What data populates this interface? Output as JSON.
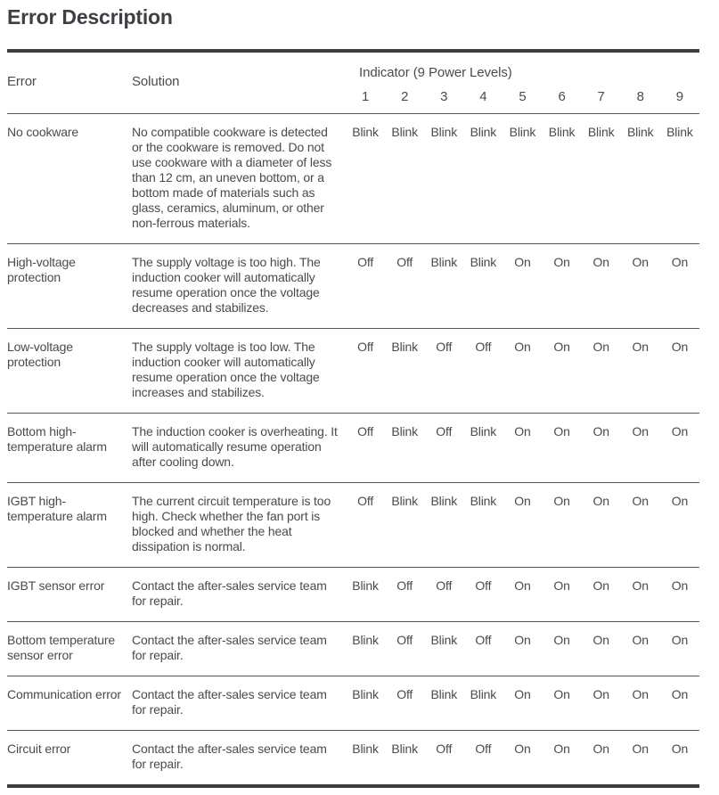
{
  "page": {
    "title": "Error Description"
  },
  "colors": {
    "text": "#4a4a51",
    "heading": "#3e3e44",
    "border_thick": "#3d3d42",
    "border_thin": "#55555a",
    "background": "#ffffff"
  },
  "table": {
    "headers": {
      "error": "Error",
      "solution": "Solution",
      "indicator_group": "Indicator (9 Power Levels)"
    },
    "indicator_columns": [
      "1",
      "2",
      "3",
      "4",
      "5",
      "6",
      "7",
      "8",
      "9"
    ],
    "rows": [
      {
        "error": "No cookware",
        "solution": "No compatible cookware is detected or the cookware is removed. Do not use cookware with a diameter of less than 12 cm, an uneven bottom, or a bottom made of materials such as glass, ceramics, aluminum, or other non-ferrous materials.",
        "indicators": [
          "Blink",
          "Blink",
          "Blink",
          "Blink",
          "Blink",
          "Blink",
          "Blink",
          "Blink",
          "Blink"
        ]
      },
      {
        "error": "High-voltage protection",
        "solution": "The supply voltage is too high. The induction cooker will automatically resume operation once the voltage decreases and stabilizes.",
        "indicators": [
          "Off",
          "Off",
          "Blink",
          "Blink",
          "On",
          "On",
          "On",
          "On",
          "On"
        ]
      },
      {
        "error": "Low-voltage protection",
        "solution": "The supply voltage is too low. The induction cooker will automatically resume operation once the voltage increases and stabilizes.",
        "indicators": [
          "Off",
          "Blink",
          "Off",
          "Off",
          "On",
          "On",
          "On",
          "On",
          "On"
        ]
      },
      {
        "error": "Bottom high-temperature alarm",
        "solution": "The induction cooker is overheating. It will automatically resume operation after cooling down.",
        "indicators": [
          "Off",
          "Blink",
          "Off",
          "Blink",
          "On",
          "On",
          "On",
          "On",
          "On"
        ]
      },
      {
        "error": "IGBT high-temperature alarm",
        "solution": "The current circuit temperature is too high. Check whether the fan port is blocked and whether the heat dissipation is normal.",
        "indicators": [
          "Off",
          "Blink",
          "Blink",
          "Blink",
          "On",
          "On",
          "On",
          "On",
          "On"
        ]
      },
      {
        "error": "IGBT sensor error",
        "solution": "Contact the after-sales service team for repair.",
        "indicators": [
          "Blink",
          "Off",
          "Off",
          "Off",
          "On",
          "On",
          "On",
          "On",
          "On"
        ]
      },
      {
        "error": "Bottom temperature sensor error",
        "solution": "Contact the after-sales service team for repair.",
        "indicators": [
          "Blink",
          "Off",
          "Blink",
          "Off",
          "On",
          "On",
          "On",
          "On",
          "On"
        ]
      },
      {
        "error": "Communication error",
        "solution": "Contact the after-sales service team for repair.",
        "indicators": [
          "Blink",
          "Off",
          "Blink",
          "Blink",
          "On",
          "On",
          "On",
          "On",
          "On"
        ]
      },
      {
        "error": "Circuit error",
        "solution": "Contact the after-sales service team for repair.",
        "indicators": [
          "Blink",
          "Blink",
          "Off",
          "Off",
          "On",
          "On",
          "On",
          "On",
          "On"
        ]
      }
    ]
  }
}
